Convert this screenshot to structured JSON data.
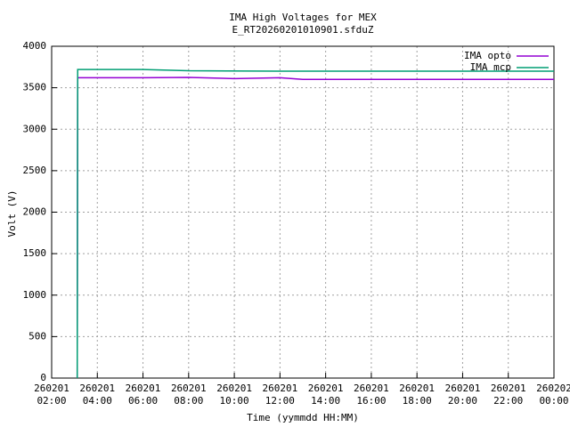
{
  "chart_data": {
    "type": "line",
    "title": "IMA High Voltages for MEX",
    "subtitle": "E_RT20260201010901.sfduZ",
    "x_label": "Time (yymmdd HH:MM)",
    "y_label": "Volt (V)",
    "xlim": [
      2,
      24
    ],
    "xticks": [
      {
        "value": 2,
        "label": "260201 02:00"
      },
      {
        "value": 4,
        "label": "260201 04:00"
      },
      {
        "value": 6,
        "label": "260201 06:00"
      },
      {
        "value": 8,
        "label": "260201 08:00"
      },
      {
        "value": 10,
        "label": "260201 10:00"
      },
      {
        "value": 12,
        "label": "260201 12:00"
      },
      {
        "value": 14,
        "label": "260201 14:00"
      },
      {
        "value": 16,
        "label": "260201 16:00"
      },
      {
        "value": 18,
        "label": "260201 18:00"
      },
      {
        "value": 20,
        "label": "260201 20:00"
      },
      {
        "value": 22,
        "label": "260201 22:00"
      },
      {
        "value": 24,
        "label": "260202 00:00"
      }
    ],
    "ylim": [
      0,
      4000
    ],
    "yticks": [
      0,
      500,
      1000,
      1500,
      2000,
      2500,
      3000,
      3500,
      4000
    ],
    "grid": true,
    "legend": "top-right",
    "series": [
      {
        "name": "IMA opto",
        "color": "#9400d3",
        "x": [
          3.12,
          3.14,
          6,
          8,
          10,
          12,
          13,
          16,
          20,
          24
        ],
        "values": [
          0,
          3620,
          3620,
          3625,
          3610,
          3620,
          3600,
          3600,
          3600,
          3600
        ]
      },
      {
        "name": "IMA mcp",
        "color": "#009e73",
        "x": [
          3.12,
          3.14,
          6,
          8,
          12,
          16,
          20,
          24
        ],
        "values": [
          0,
          3720,
          3720,
          3705,
          3700,
          3700,
          3700,
          3700
        ]
      }
    ]
  }
}
